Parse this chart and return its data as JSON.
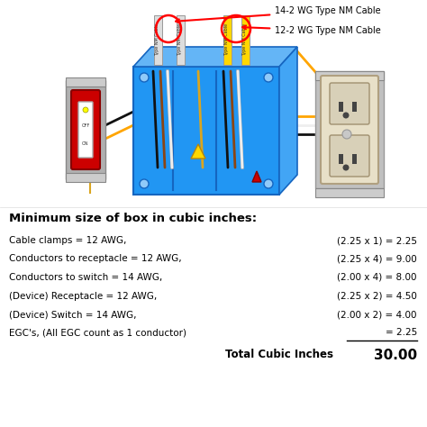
{
  "title": "Minimum size of box in cubic inches:",
  "rows": [
    {
      "label": "Cable clamps = 12 AWG,",
      "calc": "(2.25 x 1) = 2.25",
      "underline": false
    },
    {
      "label": "Conductors to receptacle = 12 AWG,",
      "calc": "(2.25 x 4) = 9.00",
      "underline": false
    },
    {
      "label": "Conductors to switch = 14 AWG,",
      "calc": "(2.00 x 4) = 8.00",
      "underline": false
    },
    {
      "label": "(Device) Receptacle = 12 AWG,",
      "calc": "(2.25 x 2) = 4.50",
      "underline": false
    },
    {
      "label": "(Device) Switch = 14 AWG,",
      "calc": "(2.00 x 2) = 4.00",
      "underline": false
    },
    {
      "label": "EGC's, (All EGC count as 1 conductor)",
      "calc": "= 2.25",
      "underline": true
    }
  ],
  "total_label": "Total Cubic Inches",
  "total_value": "30.00",
  "label1": "14-2 WG Type NM Cable",
  "label2": "12-2 WG Type NM Cable",
  "bg_color": "#ffffff"
}
